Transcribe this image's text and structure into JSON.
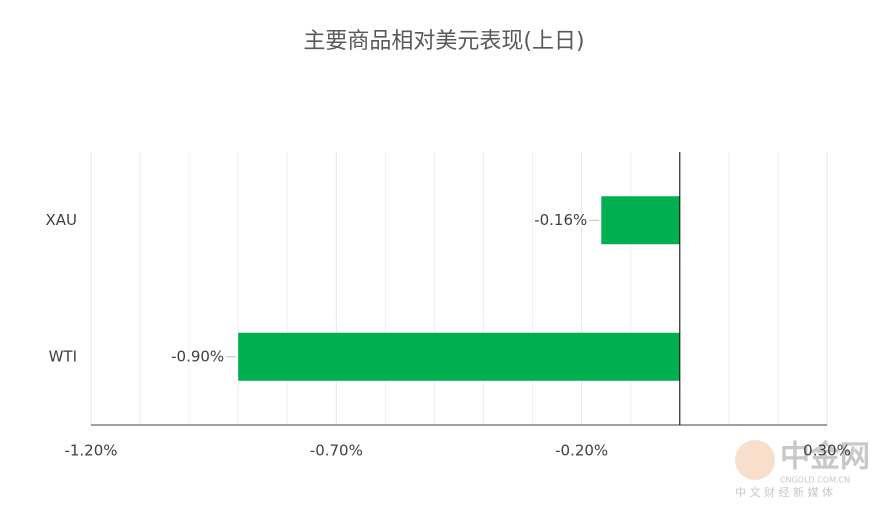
{
  "chart_data": {
    "type": "barh",
    "title": "主要商品相对美元表现(上日)",
    "categories": [
      "XAU",
      "WTI"
    ],
    "values": [
      -0.16,
      -0.9
    ],
    "value_labels": [
      "-0.16%",
      "-0.90%"
    ],
    "color": "#00b050",
    "xlim": [
      -1.2,
      0.3
    ],
    "xticks": [
      {
        "value": -1.2,
        "label": "-1.20%"
      },
      {
        "value": -0.7,
        "label": "-0.70%"
      },
      {
        "value": -0.2,
        "label": "-0.20%"
      },
      {
        "value": 0.3,
        "label": "0.30%"
      }
    ],
    "minor_xticks": [
      -1.1,
      -1.0,
      -0.9,
      -0.8,
      -0.6,
      -0.5,
      -0.4,
      -0.3,
      -0.1,
      0,
      0.1,
      0.2
    ],
    "grid": true
  },
  "watermark": {
    "name": "中金网",
    "site": "CNGOLD.COM.CN",
    "tagline": "中 文 财 经 新 媒 体"
  }
}
